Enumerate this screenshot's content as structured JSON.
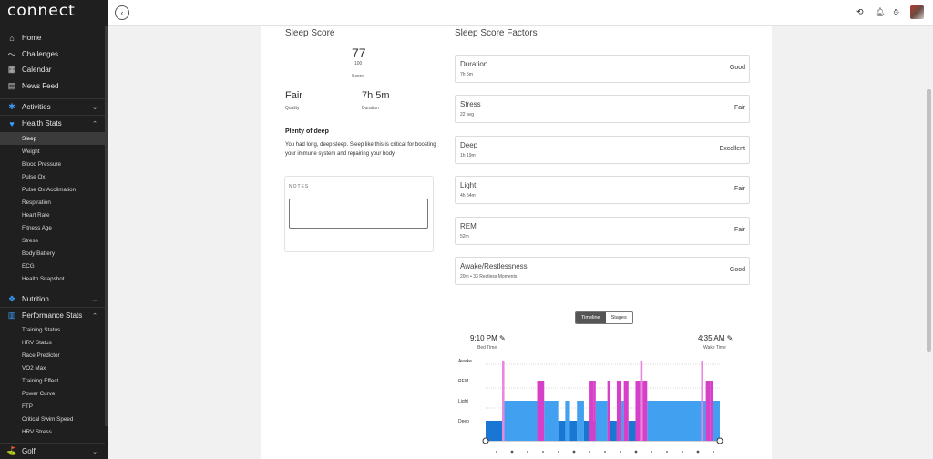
{
  "app": {
    "logo": "connect"
  },
  "sidebar": {
    "main_items": [
      {
        "label": "Home",
        "icon": "home-icon"
      },
      {
        "label": "Challenges",
        "icon": "challenges-icon"
      },
      {
        "label": "Calendar",
        "icon": "calendar-icon"
      },
      {
        "label": "News Feed",
        "icon": "news-feed-icon"
      }
    ],
    "activities": "Activities",
    "health_stats": "Health Stats",
    "health_items": [
      "Sleep",
      "Weight",
      "Blood Pressure",
      "Pulse Ox",
      "Pulse Ox Acclimation",
      "Respiration",
      "Heart Rate",
      "Fitness Age",
      "Stress",
      "Body Battery",
      "ECG",
      "Health Snapshot"
    ],
    "nutrition": "Nutrition",
    "performance_stats": "Performance Stats",
    "performance_items": [
      "Training Status",
      "HRV Status",
      "Race Predictor",
      "VO2 Max",
      "Training Effect",
      "Power Curve",
      "FTP",
      "Critical Swim Speed",
      "HRV Stress"
    ],
    "golf": "Golf"
  },
  "sleep_score": {
    "title": "Sleep Score",
    "score": "77",
    "out_of": "100",
    "score_label": "Score",
    "quality_value": "Fair",
    "quality_label": "Quality",
    "duration_value": "7h 5m",
    "duration_label": "Duration",
    "insight_title": "Plenty of deep",
    "insight_text": "You had long, deep sleep. Sleep like this is critical for boosting your immune system and repairing your body.",
    "notes_label": "NOTES"
  },
  "factors": {
    "title": "Sleep Score Factors",
    "items": [
      {
        "name": "Duration",
        "sub": "7h 5m",
        "rating": "Good"
      },
      {
        "name": "Stress",
        "sub": "22 avg",
        "rating": "Fair"
      },
      {
        "name": "Deep",
        "sub": "1h 19m",
        "rating": "Excellent"
      },
      {
        "name": "Light",
        "sub": "4h 54m",
        "rating": "Fair"
      },
      {
        "name": "REM",
        "sub": "52m",
        "rating": "Fair"
      },
      {
        "name": "Awake/Restlessness",
        "sub": "20m • 33 Restless Moments",
        "rating": "Good"
      }
    ]
  },
  "timeline": {
    "tab_timeline": "Timeline",
    "tab_stages": "Stages",
    "bed_time": "9:10 PM",
    "bed_label": "Bed Time",
    "wake_time": "4:35 AM",
    "wake_label": "Wake Time"
  },
  "chart_data": {
    "type": "area",
    "stages": [
      "Awake",
      "REM",
      "Light",
      "Deep"
    ],
    "colors": {
      "deep": "#1976d2",
      "light": "#42a0f0",
      "rem": "#d63fc8",
      "awake": "#e887de"
    },
    "segments": [
      {
        "stage": "Deep",
        "start": 0.0,
        "end": 0.07
      },
      {
        "stage": "Light",
        "start": 0.07,
        "end": 0.22
      },
      {
        "stage": "Awake",
        "start": 0.07,
        "end": 0.08
      },
      {
        "stage": "REM",
        "start": 0.22,
        "end": 0.25
      },
      {
        "stage": "Light",
        "start": 0.25,
        "end": 0.31
      },
      {
        "stage": "Deep",
        "start": 0.31,
        "end": 0.34
      },
      {
        "stage": "Light",
        "start": 0.34,
        "end": 0.36
      },
      {
        "stage": "Deep",
        "start": 0.36,
        "end": 0.39
      },
      {
        "stage": "Light",
        "start": 0.39,
        "end": 0.42
      },
      {
        "stage": "Deep",
        "start": 0.42,
        "end": 0.47
      },
      {
        "stage": "REM",
        "start": 0.44,
        "end": 0.46
      },
      {
        "stage": "REM",
        "start": 0.46,
        "end": 0.47
      },
      {
        "stage": "Light",
        "start": 0.47,
        "end": 0.52
      },
      {
        "stage": "REM",
        "start": 0.52,
        "end": 0.53
      },
      {
        "stage": "Deep",
        "start": 0.53,
        "end": 0.56
      },
      {
        "stage": "REM",
        "start": 0.56,
        "end": 0.58
      },
      {
        "stage": "Light",
        "start": 0.58,
        "end": 0.59
      },
      {
        "stage": "REM",
        "start": 0.59,
        "end": 0.61
      },
      {
        "stage": "Deep",
        "start": 0.61,
        "end": 0.64
      },
      {
        "stage": "REM",
        "start": 0.64,
        "end": 0.66
      },
      {
        "stage": "Awake",
        "start": 0.66,
        "end": 0.67
      },
      {
        "stage": "REM",
        "start": 0.67,
        "end": 0.69
      },
      {
        "stage": "Light",
        "start": 0.69,
        "end": 0.94
      },
      {
        "stage": "REM",
        "start": 0.94,
        "end": 0.96
      },
      {
        "stage": "Awake",
        "start": 0.92,
        "end": 0.93
      },
      {
        "stage": "REM",
        "start": 0.96,
        "end": 0.97
      },
      {
        "stage": "Light",
        "start": 0.97,
        "end": 1.0
      }
    ]
  }
}
